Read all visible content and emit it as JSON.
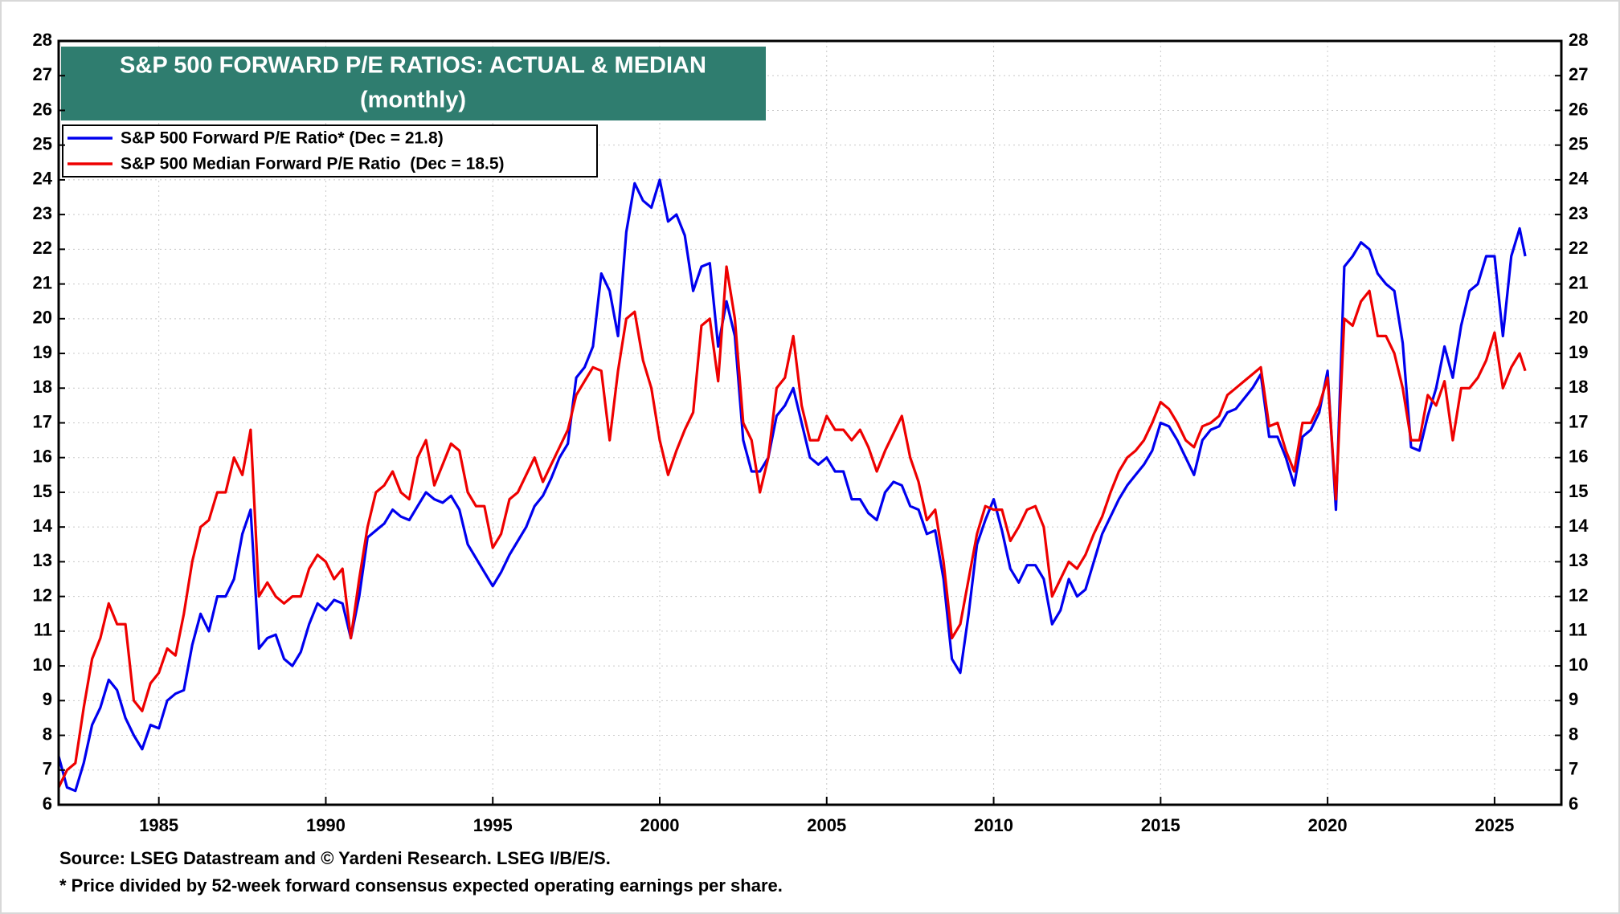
{
  "chart_data": {
    "type": "line",
    "title": "S&P 500 FORWARD P/E RATIOS: ACTUAL & MEDIAN",
    "subtitle": "(monthly)",
    "notes": [
      "Source: LSEG Datastream and © Yardeni Research.  LSEG I/B/E/S.",
      "* Price divided by 52-week forward consensus expected operating earnings per share."
    ],
    "x": [
      1982,
      1982.25,
      1982.5,
      1982.75,
      1983,
      1983.25,
      1983.5,
      1983.75,
      1984,
      1984.25,
      1984.5,
      1984.75,
      1985,
      1985.25,
      1985.5,
      1985.75,
      1986,
      1986.25,
      1986.5,
      1986.75,
      1987,
      1987.25,
      1987.5,
      1987.75,
      1988,
      1988.25,
      1988.5,
      1988.75,
      1989,
      1989.25,
      1989.5,
      1989.75,
      1990,
      1990.25,
      1990.5,
      1990.75,
      1991,
      1991.25,
      1991.5,
      1991.75,
      1992,
      1992.25,
      1992.5,
      1992.75,
      1993,
      1993.25,
      1993.5,
      1993.75,
      1994,
      1994.25,
      1994.5,
      1994.75,
      1995,
      1995.25,
      1995.5,
      1995.75,
      1996,
      1996.25,
      1996.5,
      1996.75,
      1997,
      1997.25,
      1997.5,
      1997.75,
      1998,
      1998.25,
      1998.5,
      1998.75,
      1999,
      1999.25,
      1999.5,
      1999.75,
      2000,
      2000.25,
      2000.5,
      2000.75,
      2001,
      2001.25,
      2001.5,
      2001.75,
      2002,
      2002.25,
      2002.5,
      2002.75,
      2003,
      2003.25,
      2003.5,
      2003.75,
      2004,
      2004.25,
      2004.5,
      2004.75,
      2005,
      2005.25,
      2005.5,
      2005.75,
      2006,
      2006.25,
      2006.5,
      2006.75,
      2007,
      2007.25,
      2007.5,
      2007.75,
      2008,
      2008.25,
      2008.5,
      2008.75,
      2009,
      2009.25,
      2009.5,
      2009.75,
      2010,
      2010.25,
      2010.5,
      2010.75,
      2011,
      2011.25,
      2011.5,
      2011.75,
      2012,
      2012.25,
      2012.5,
      2012.75,
      2013,
      2013.25,
      2013.5,
      2013.75,
      2014,
      2014.25,
      2014.5,
      2014.75,
      2015,
      2015.25,
      2015.5,
      2015.75,
      2016,
      2016.25,
      2016.5,
      2016.75,
      2017,
      2017.25,
      2017.5,
      2017.75,
      2018,
      2018.25,
      2018.5,
      2018.75,
      2019,
      2019.25,
      2019.5,
      2019.75,
      2020,
      2020.25,
      2020.5,
      2020.75,
      2021,
      2021.25,
      2021.5,
      2021.75,
      2022,
      2022.25,
      2022.5,
      2022.75,
      2023,
      2023.25,
      2023.5,
      2023.75,
      2024,
      2024.25,
      2024.5,
      2024.75,
      2025,
      2025.25,
      2025.5,
      2025.75,
      2025.92
    ],
    "series": [
      {
        "name": "S&P 500 Forward P/E Ratio* (Dec = 21.8)",
        "color": "#0000ee",
        "values": [
          7.4,
          6.5,
          6.4,
          7.2,
          8.3,
          8.8,
          9.6,
          9.3,
          8.5,
          8.0,
          7.6,
          8.3,
          8.2,
          9.0,
          9.2,
          9.3,
          10.6,
          11.5,
          11.0,
          12.0,
          12.0,
          12.5,
          13.8,
          14.5,
          10.5,
          10.8,
          10.9,
          10.2,
          10.0,
          10.4,
          11.2,
          11.8,
          11.6,
          11.9,
          11.8,
          10.8,
          12.0,
          13.7,
          13.9,
          14.1,
          14.5,
          14.3,
          14.2,
          14.6,
          15.0,
          14.8,
          14.7,
          14.9,
          14.5,
          13.5,
          13.1,
          12.7,
          12.3,
          12.7,
          13.2,
          13.6,
          14.0,
          14.6,
          14.9,
          15.4,
          16.0,
          16.4,
          18.3,
          18.6,
          19.2,
          21.3,
          20.8,
          19.5,
          22.5,
          23.9,
          23.4,
          23.2,
          24.0,
          22.8,
          23.0,
          22.4,
          20.8,
          21.5,
          21.6,
          19.2,
          20.5,
          19.5,
          16.5,
          15.6,
          15.6,
          16.0,
          17.2,
          17.5,
          18.0,
          17.0,
          16.0,
          15.8,
          16.0,
          15.6,
          15.6,
          14.8,
          14.8,
          14.4,
          14.2,
          15.0,
          15.3,
          15.2,
          14.6,
          14.5,
          13.8,
          13.9,
          12.5,
          10.2,
          9.8,
          11.5,
          13.5,
          14.2,
          14.8,
          13.9,
          12.8,
          12.4,
          12.9,
          12.9,
          12.5,
          11.2,
          11.6,
          12.5,
          12.0,
          12.2,
          13.0,
          13.8,
          14.3,
          14.8,
          15.2,
          15.5,
          15.8,
          16.2,
          17.0,
          16.9,
          16.5,
          16.0,
          15.5,
          16.5,
          16.8,
          16.9,
          17.3,
          17.4,
          17.7,
          18.0,
          18.4,
          16.6,
          16.6,
          16.0,
          15.2,
          16.6,
          16.8,
          17.3,
          18.5,
          14.5,
          21.5,
          21.8,
          22.2,
          22.0,
          21.3,
          21.0,
          20.8,
          19.3,
          16.3,
          16.2,
          17.2,
          18.0,
          19.2,
          18.3,
          19.8,
          20.8,
          21.0,
          21.8,
          21.8,
          19.5,
          21.8,
          22.6,
          21.8
        ]
      },
      {
        "name": "S&P 500 Median Forward P/E Ratio  (Dec = 18.5)",
        "color": "#ee0000",
        "values": [
          6.5,
          7.0,
          7.2,
          8.8,
          10.2,
          10.8,
          11.8,
          11.2,
          11.2,
          9.0,
          8.7,
          9.5,
          9.8,
          10.5,
          10.3,
          11.5,
          13.0,
          14.0,
          14.2,
          15.0,
          15.0,
          16.0,
          15.5,
          16.8,
          12.0,
          12.4,
          12.0,
          11.8,
          12.0,
          12.0,
          12.8,
          13.2,
          13.0,
          12.5,
          12.8,
          10.8,
          12.5,
          14.0,
          15.0,
          15.2,
          15.6,
          15.0,
          14.8,
          16.0,
          16.5,
          15.2,
          15.8,
          16.4,
          16.2,
          15.0,
          14.6,
          14.6,
          13.4,
          13.8,
          14.8,
          15.0,
          15.5,
          16.0,
          15.3,
          15.8,
          16.3,
          16.8,
          17.8,
          18.2,
          18.6,
          18.5,
          16.5,
          18.5,
          20.0,
          20.2,
          18.8,
          18.0,
          16.5,
          15.5,
          16.2,
          16.8,
          17.3,
          19.8,
          20.0,
          18.2,
          21.5,
          20.0,
          17.0,
          16.5,
          15.0,
          16.0,
          18.0,
          18.3,
          19.5,
          17.5,
          16.5,
          16.5,
          17.2,
          16.8,
          16.8,
          16.5,
          16.8,
          16.3,
          15.6,
          16.2,
          16.7,
          17.2,
          16.0,
          15.3,
          14.2,
          14.5,
          13.0,
          10.8,
          11.2,
          12.5,
          13.8,
          14.6,
          14.5,
          14.5,
          13.6,
          14.0,
          14.5,
          14.6,
          14.0,
          12.0,
          12.5,
          13.0,
          12.8,
          13.2,
          13.8,
          14.3,
          15.0,
          15.6,
          16.0,
          16.2,
          16.5,
          17.0,
          17.6,
          17.4,
          17.0,
          16.5,
          16.3,
          16.9,
          17.0,
          17.2,
          17.8,
          18.0,
          18.2,
          18.4,
          18.6,
          16.9,
          17.0,
          16.2,
          15.6,
          17.0,
          17.0,
          17.5,
          18.3,
          14.8,
          20.0,
          19.8,
          20.5,
          20.8,
          19.5,
          19.5,
          19.0,
          18.0,
          16.5,
          16.5,
          17.8,
          17.5,
          18.2,
          16.5,
          18.0,
          18.0,
          18.3,
          18.8,
          19.6,
          18.0,
          18.6,
          19.0,
          18.5
        ]
      }
    ],
    "xlim": [
      1982,
      2027
    ],
    "xticks": [
      1985,
      1990,
      1995,
      2000,
      2005,
      2010,
      2015,
      2020,
      2025
    ],
    "ylim": [
      6,
      28
    ],
    "yticks": [
      6,
      7,
      8,
      9,
      10,
      11,
      12,
      13,
      14,
      15,
      16,
      17,
      18,
      19,
      20,
      21,
      22,
      23,
      24,
      25,
      26,
      27,
      28
    ],
    "grid": true,
    "title_color": "#2f7d6f"
  }
}
